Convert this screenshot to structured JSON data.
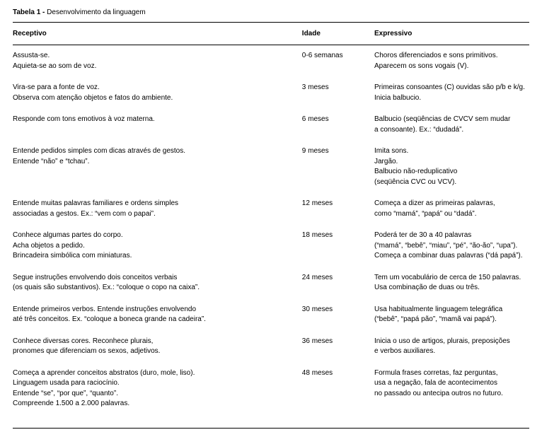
{
  "table": {
    "label_prefix": "Tabela 1 -",
    "title": " Desenvolvimento da linguagem",
    "headers": {
      "receptivo": "Receptivo",
      "idade": "Idade",
      "expressivo": "Expressivo"
    },
    "rows": [
      {
        "receptivo": "Assusta-se.\nAquieta-se ao som de voz.",
        "idade": "0-6 semanas",
        "expressivo": "Choros diferenciados e sons primitivos.\nAparecem os sons vogais (V)."
      },
      {
        "receptivo": "Vira-se para a fonte de voz.\nObserva com atenção objetos e fatos do ambiente.",
        "idade": "3 meses",
        "expressivo": "Primeiras consoantes (C) ouvidas são p/b e k/g.\nInicia balbucio."
      },
      {
        "receptivo": "Responde com tons emotivos à voz materna.",
        "idade": "6 meses",
        "expressivo": "Balbucio (seqüências de CVCV sem mudar\na consoante). Ex.: “dudadá”."
      },
      {
        "receptivo": "Entende pedidos simples com dicas através de gestos.\nEntende “não” e “tchau”.",
        "idade": "9 meses",
        "expressivo": "Imita sons.\nJargão.\nBalbucio não-reduplicativo\n(seqüência CVC ou VCV)."
      },
      {
        "receptivo": "Entende muitas palavras familiares e ordens simples\nassociadas a gestos. Ex.: “vem com o papai”.",
        "idade": "12 meses",
        "expressivo": "Começa a dizer as primeiras palavras,\n como “mamá”, “papá” ou “dadá”."
      },
      {
        "receptivo": "Conhece algumas partes do corpo.\nAcha objetos a pedido.\nBrincadeira simbólica com miniaturas.",
        "idade": "18 meses",
        "expressivo": "Poderá ter de 30 a 40 palavras\n(“mamá”, “bebê”, “miau”, “pé”, “ão-ão”, “upa”).\nComeça a combinar duas palavras (“dá papá”)."
      },
      {
        "receptivo": "Segue instruções envolvendo dois conceitos verbais\n (os quais são substantivos). Ex.: “coloque o copo na caixa”.",
        "idade": "24 meses",
        "expressivo": "Tem um vocabulário de cerca de 150 palavras.\nUsa combinação de duas ou três."
      },
      {
        "receptivo": "Entende primeiros verbos. Entende instruções envolvendo\naté três conceitos. Ex. “coloque a boneca grande na cadeira”.",
        "idade": "30 meses",
        "expressivo": "Usa habitualmente linguagem telegráfica\n (“bebê”, “papá pão”, “mamã vai papá”)."
      },
      {
        "receptivo": "Conhece diversas cores. Reconhece plurais,\npronomes que diferenciam os sexos, adjetivos.",
        "idade": "36 meses",
        "expressivo": "Inicia o uso de artigos, plurais, preposições\ne verbos auxiliares."
      },
      {
        "receptivo": "Começa a aprender conceitos abstratos (duro, mole, liso).\nLinguagem usada para raciocínio.\nEntende “se”, “por que”, “quanto”.\nCompreende 1.500 a 2.000 palavras.",
        "idade": "48 meses",
        "expressivo": "Formula frases corretas, faz perguntas,\nusa a negação, fala de acontecimentos\nno passado ou antecipa outros no futuro."
      }
    ]
  }
}
